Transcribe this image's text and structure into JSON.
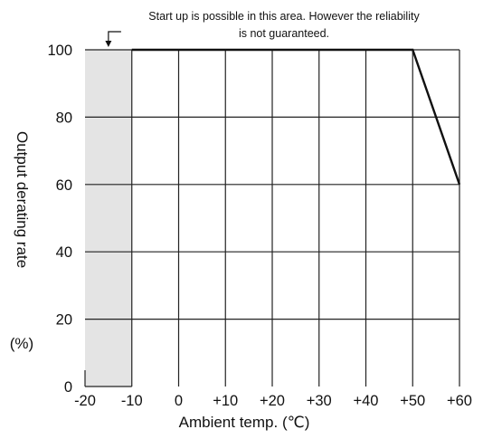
{
  "chart_data": {
    "type": "line",
    "title": "",
    "xlabel": "Ambient temp. (℃)",
    "ylabel": "Output derating rate",
    "ylabel_unit": "(%)",
    "xlim": [
      -20,
      60
    ],
    "ylim": [
      0,
      100
    ],
    "grid": true,
    "x_ticks": [
      -20,
      -10,
      0,
      10,
      20,
      30,
      40,
      50,
      60
    ],
    "x_tick_labels": [
      "-20",
      "-10",
      "0",
      "+10",
      "+20",
      "+30",
      "+40",
      "+50",
      "+60"
    ],
    "y_ticks": [
      0,
      20,
      40,
      60,
      80,
      100
    ],
    "y_tick_labels": [
      "0",
      "20",
      "40",
      "60",
      "80",
      "100"
    ],
    "series": [
      {
        "x": [
          -10,
          50,
          60
        ],
        "y": [
          100,
          100,
          60
        ]
      }
    ],
    "shaded_region": {
      "x": [
        -20,
        -10
      ],
      "y": [
        0,
        100
      ]
    },
    "annotation": {
      "lines": [
        "Start up is possible in this area. However the reliability",
        "is not guaranteed."
      ],
      "points_to_x": -15
    },
    "colors": {
      "line": "#111111",
      "grid": "#222222",
      "shade": "#e4e4e4"
    }
  }
}
